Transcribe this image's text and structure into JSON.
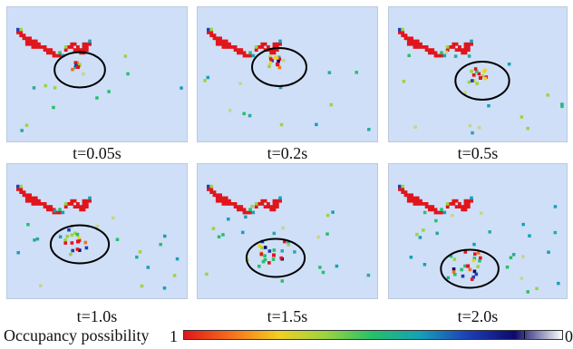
{
  "panels": [
    {
      "caption": "t=0.05s",
      "circle": [
        0.4,
        0.46,
        0.13,
        0.13
      ]
    },
    {
      "caption": "t=0.2s",
      "circle": [
        0.45,
        0.44,
        0.14,
        0.14
      ]
    },
    {
      "caption": "t=0.5s",
      "circle": [
        0.52,
        0.54,
        0.14,
        0.14
      ]
    },
    {
      "caption": "t=1.0s",
      "circle": [
        0.4,
        0.59,
        0.15,
        0.14
      ]
    },
    {
      "caption": "t=1.5s",
      "circle": [
        0.43,
        0.69,
        0.15,
        0.14
      ]
    },
    {
      "caption": "t=2.0s",
      "circle": [
        0.45,
        0.77,
        0.15,
        0.14
      ]
    }
  ],
  "colorbar": {
    "label": "Occupancy possibility",
    "max_label": "1",
    "min_label": "0",
    "colors": [
      "#e0161c",
      "#f5701c",
      "#f3cf22",
      "#9ad440",
      "#25c06a",
      "#16a0b8",
      "#1d3fb8",
      "#0b0b6a",
      "#ffffff"
    ]
  }
}
